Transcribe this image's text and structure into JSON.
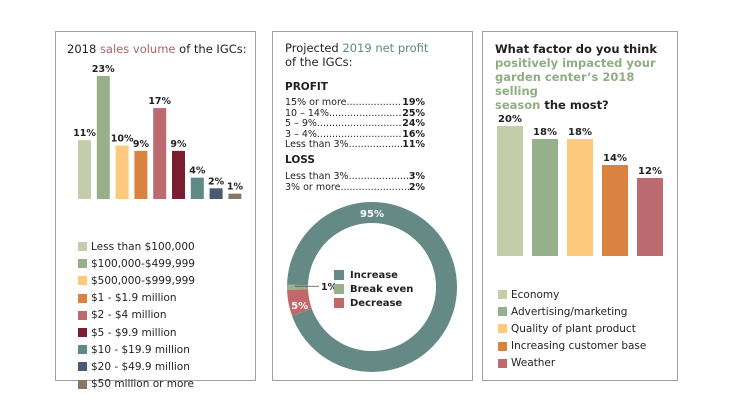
{
  "panels": {
    "sales": {
      "title_pre": "2018 ",
      "title_hl": "sales volume",
      "title_post": " of the IGCs:"
    },
    "profit": {
      "title_pre": "Projected ",
      "title_hl": "2019 net profit",
      "title_line2": "of the IGCs:",
      "profit_heading": "PROFIT",
      "profit_rows": [
        {
          "label": "15% or more",
          "value": "19%"
        },
        {
          "label": "10 – 14%",
          "value": "25%"
        },
        {
          "label": "5 – 9%",
          "value": "24%"
        },
        {
          "label": "3 – 4%",
          "value": "16%"
        },
        {
          "label": "Less than 3%",
          "value": "11%"
        }
      ],
      "loss_heading": "LOSS",
      "loss_rows": [
        {
          "label": "Less than 3%",
          "value": "3%"
        },
        {
          "label": "3% or more",
          "value": "2%"
        }
      ]
    },
    "factor": {
      "title_line1": "What factor do you think",
      "title_hl1": "positively impacted your",
      "title_hl2": "garden center’s 2018 selling",
      "title_hl3": "season",
      "title_post": " the most?"
    }
  },
  "chart_data": [
    {
      "type": "bar",
      "title": "2018 sales volume of the IGCs:",
      "categories": [
        "Less than $100,000",
        "$100,000-$499,999",
        "$500,000-$999,999",
        "$1 - $1.9 million",
        "$2 - $4 million",
        "$5 - $9.9 million",
        "$10 - $19.9 million",
        "$20 - $49.9 million",
        "$50 million or more"
      ],
      "values": [
        11,
        23,
        10,
        9,
        17,
        9,
        4,
        2,
        1
      ],
      "labels": [
        "11%",
        "23%",
        "10%",
        "9%",
        "17%",
        "9%",
        "4%",
        "2%",
        "1%"
      ],
      "colors": [
        "#c5cca9",
        "#95b08a",
        "#fdca7d",
        "#da8240",
        "#bc6a70",
        "#7a1d33",
        "#5f8a86",
        "#4a5a70",
        "#8a7664"
      ],
      "xlabel": "",
      "ylabel": "",
      "ylim": [
        0,
        23
      ],
      "legend": "bottom"
    },
    {
      "type": "pie",
      "title": "Projected 2019 net profit of the IGCs:",
      "categories": [
        "Increase",
        "Break even",
        "Decrease"
      ],
      "values": [
        95,
        1,
        5
      ],
      "labels": [
        "95%",
        "1%",
        "5%"
      ],
      "colors": [
        "#658a85",
        "#97b18b",
        "#c2686b"
      ],
      "legend": "center"
    },
    {
      "type": "bar",
      "title": "What factor do you think positively impacted your garden center’s 2018 selling season the most?",
      "categories": [
        "Economy",
        "Advertising/marketing",
        "Quality of plant product",
        "Increasing customer base",
        "Weather"
      ],
      "values": [
        20,
        18,
        18,
        14,
        12
      ],
      "labels": [
        "20%",
        "18%",
        "18%",
        "14%",
        "12%"
      ],
      "colors": [
        "#c5cca9",
        "#95b08a",
        "#fdca7d",
        "#da8240",
        "#bc6a70"
      ],
      "xlabel": "",
      "ylabel": "",
      "ylim": [
        0,
        20
      ],
      "legend": "bottom"
    }
  ]
}
